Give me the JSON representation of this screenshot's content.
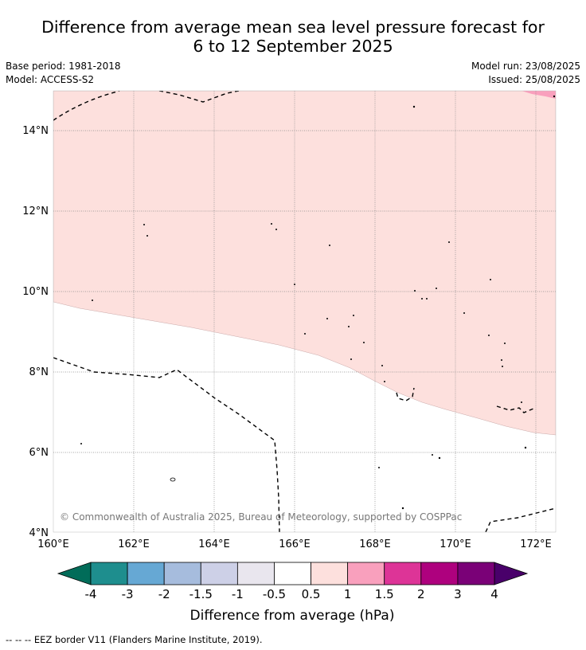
{
  "title": {
    "line1": "Difference from average mean sea level pressure forecast for",
    "line2": "6 to 12 September 2025"
  },
  "meta_left": {
    "base_period": "Base period: 1981-2018",
    "model": "Model: ACCESS-S2"
  },
  "meta_right": {
    "model_run": "Model run: 23/08/2025",
    "issued": "Issued: 25/08/2025"
  },
  "map": {
    "lat_labels": [
      "14°N",
      "12°N",
      "10°N",
      "8°N",
      "6°N",
      "4°N"
    ],
    "lon_labels": [
      "160°E",
      "162°E",
      "164°E",
      "166°E",
      "168°E",
      "170°E",
      "172°E"
    ],
    "copyright": "© Commonwealth of Australia 2025, Bureau of Meteorology, supported by COSPPac",
    "colors": {
      "anomaly_0_5_to_1": "#fde0dd",
      "anomaly_1_to_1_5": "#f9a0bd"
    }
  },
  "colorbar": {
    "ticks": [
      "-4",
      "-3",
      "-2",
      "-1.5",
      "-1",
      "-0.5",
      "0.5",
      "1",
      "1.5",
      "2",
      "3",
      "4"
    ],
    "colors": [
      "#1e8e8e",
      "#66a8d4",
      "#a6bcdd",
      "#cdd0e7",
      "#e9e6ee",
      "#ffffff",
      "#fde0dd",
      "#f9a0bd",
      "#dd3497",
      "#ae017e",
      "#7a0177"
    ],
    "under_color": "#016c59",
    "over_color": "#49006a",
    "label": "Difference from average (hPa)"
  },
  "legend": {
    "dash": "--  --  --",
    "text": "EEZ border V11 (Flanders Marine Institute, 2019)."
  }
}
